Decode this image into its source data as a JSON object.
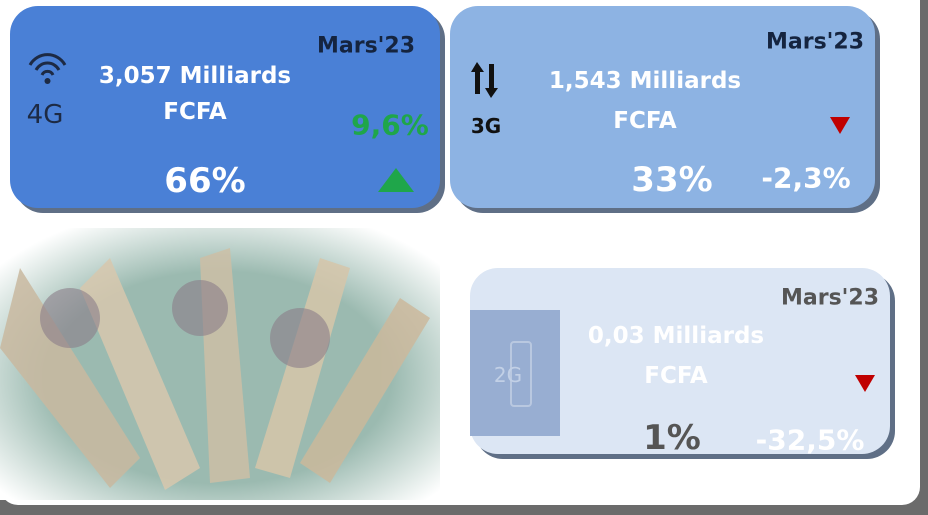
{
  "cards": [
    {
      "network": "4G",
      "period": "Mars'23",
      "amount": "3,057 Milliards",
      "currency": "FCFA",
      "share": "66%",
      "change": "9,6%"
    },
    {
      "network": "3G",
      "period": "Mars'23",
      "amount": "1,543 Milliards",
      "currency": "FCFA",
      "share": "33%",
      "change": "-2,3%"
    },
    {
      "network": "2G",
      "period": "Mars'23",
      "amount": "0,03 Milliards",
      "currency": "FCFA",
      "share": "1%",
      "change": "-32,5%"
    }
  ]
}
